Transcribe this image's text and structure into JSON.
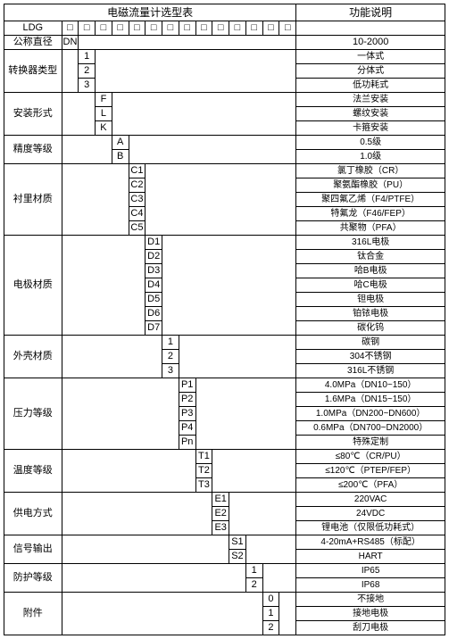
{
  "title_left": "电磁流量计选型表",
  "title_right": "功能说明",
  "rows": [
    {
      "label": "LDG",
      "code": "□",
      "desc": ""
    },
    {
      "label": "公称直径",
      "code": "DN",
      "desc": "10-2000"
    },
    {
      "label": "转换器类型",
      "codes": [
        "1",
        "2",
        "3"
      ],
      "descs": [
        "一体式",
        "分体式",
        "低功耗式"
      ]
    },
    {
      "label": "安装形式",
      "codes": [
        "F",
        "L",
        "K"
      ],
      "descs": [
        "法兰安装",
        "螺纹安装",
        "卡箍安装"
      ]
    },
    {
      "label": "精度等级",
      "codes": [
        "A",
        "B"
      ],
      "descs": [
        "0.5级",
        "1.0级"
      ]
    },
    {
      "label": "衬里材质",
      "codes": [
        "C1",
        "C2",
        "C3",
        "C4",
        "C5"
      ],
      "descs": [
        "氯丁橡胶（CR）",
        "聚氨酯橡胶（PU）",
        "聚四氟乙烯（F4/PTFE）",
        "特氟龙（F46/FEP）",
        "共聚物（PFA）"
      ]
    },
    {
      "label": "电极材质",
      "codes": [
        "D1",
        "D2",
        "D3",
        "D4",
        "D5",
        "D6",
        "D7"
      ],
      "descs": [
        "316L电极",
        "钛合金",
        "哈B电极",
        "哈C电极",
        "钽电极",
        "铂铱电极",
        "碳化钨"
      ]
    },
    {
      "label": "外壳材质",
      "codes": [
        "1",
        "2",
        "3"
      ],
      "descs": [
        "碳钢",
        "304不锈钢",
        "316L不锈钢"
      ]
    },
    {
      "label": "压力等级",
      "codes": [
        "P1",
        "P2",
        "P3",
        "P4",
        "Pn"
      ],
      "descs": [
        "4.0MPa（DN10~150）",
        "1.6MPa（DN15~150）",
        "1.0MPa（DN200~DN600）",
        "0.6MPa（DN700~DN2000）",
        "特殊定制"
      ]
    },
    {
      "label": "温度等级",
      "codes": [
        "T1",
        "T2",
        "T3"
      ],
      "descs": [
        "≤80℃（CR/PU）",
        "≤120℃（PTEP/FEP）",
        "≤200℃（PFA）"
      ]
    },
    {
      "label": "供电方式",
      "codes": [
        "E1",
        "E2",
        "E3"
      ],
      "descs": [
        "220VAC",
        "24VDC",
        "锂电池（仅限低功耗式）"
      ]
    },
    {
      "label": "信号输出",
      "codes": [
        "S1",
        "S2"
      ],
      "descs": [
        "4-20mA+RS485（标配）",
        "HART"
      ]
    },
    {
      "label": "防护等级",
      "codes": [
        "1",
        "2"
      ],
      "descs": [
        "IP65",
        "IP68"
      ]
    },
    {
      "label": "附件",
      "codes": [
        "0",
        "1",
        "2"
      ],
      "descs": [
        "不接地",
        "接地电极",
        "刮刀电极"
      ]
    }
  ],
  "box_chain": "□□□□□□□□□□□□□"
}
